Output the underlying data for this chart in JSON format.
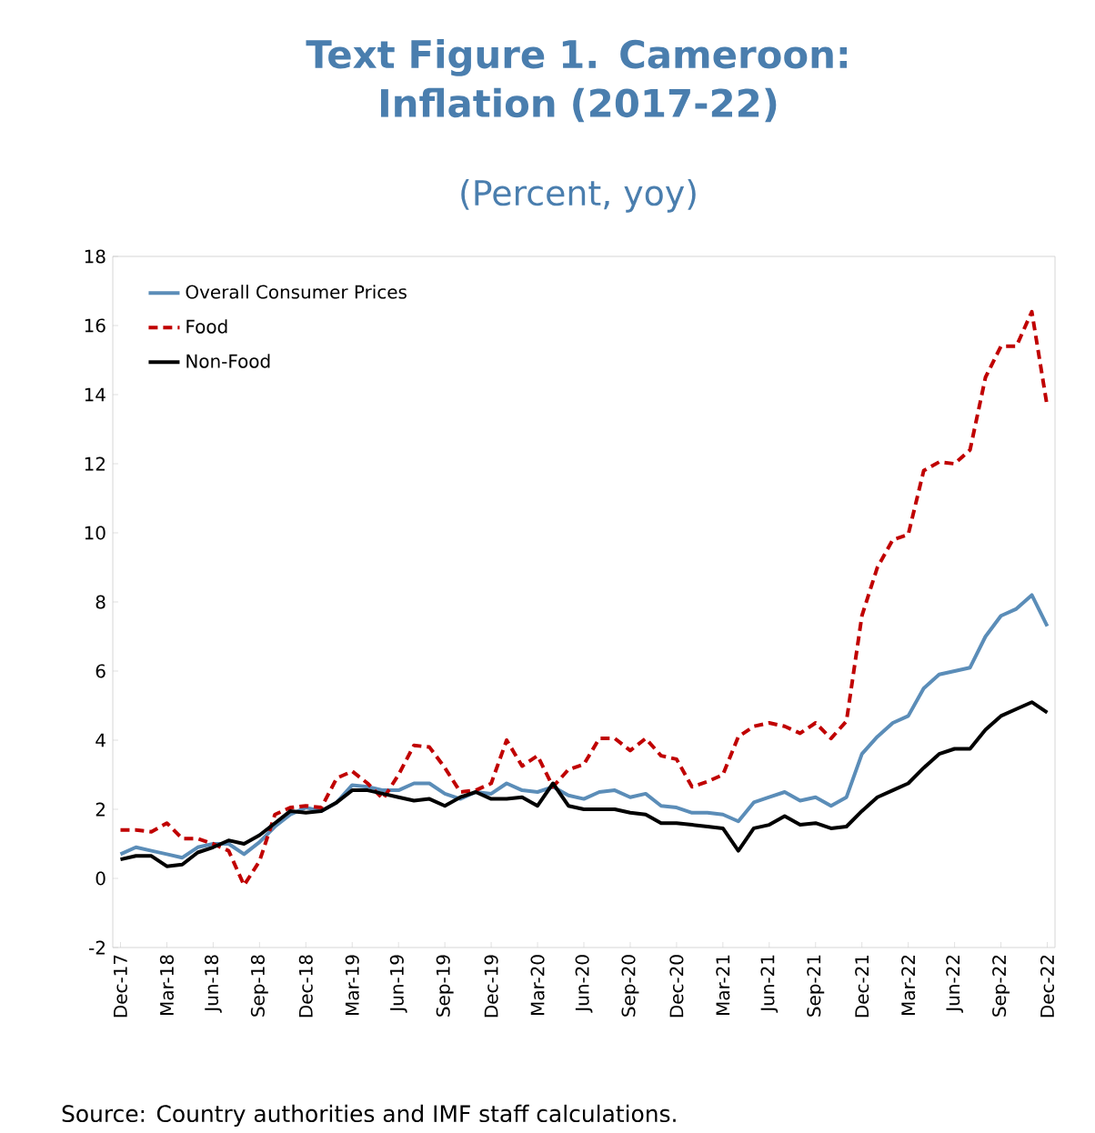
{
  "chart_data": {
    "type": "line",
    "title": "Text Figure 1. Cameroon: Inflation (2017-22)",
    "subtitle": "(Percent, yoy)",
    "annotations": [
      "Source: Country authorities and IMF staff calculations."
    ],
    "categories": [
      "Dec-17",
      null,
      null,
      "Mar-18",
      null,
      null,
      "Jun-18",
      null,
      null,
      "Sep-18",
      null,
      null,
      "Dec-18",
      null,
      null,
      "Mar-19",
      null,
      null,
      "Jun-19",
      null,
      null,
      "Sep-19",
      null,
      null,
      "Dec-19",
      null,
      null,
      "Mar-20",
      null,
      null,
      "Jun-20",
      null,
      null,
      "Sep-20",
      null,
      null,
      "Dec-20",
      null,
      null,
      "Mar-21",
      null,
      null,
      "Jun-21",
      null,
      null,
      "Sep-21",
      null,
      null,
      "Dec-21",
      null,
      null,
      "Mar-22",
      null,
      null,
      "Jun-22",
      null,
      null,
      "Sep-22",
      null,
      null,
      "Dec-22"
    ],
    "series": [
      {
        "name": "Overall Consumer Prices",
        "color": "#5b8db8",
        "line_style": "solid",
        "values": [
          0.7,
          0.9,
          0.8,
          0.7,
          0.6,
          0.9,
          1.0,
          1.0,
          0.7,
          1.05,
          1.5,
          1.85,
          2.05,
          1.95,
          2.2,
          2.7,
          2.65,
          2.55,
          2.55,
          2.75,
          2.75,
          2.45,
          2.3,
          2.5,
          2.45,
          2.75,
          2.55,
          2.5,
          2.65,
          2.4,
          2.3,
          2.5,
          2.55,
          2.35,
          2.45,
          2.1,
          2.05,
          1.9,
          1.9,
          1.85,
          1.65,
          2.2,
          2.35,
          2.5,
          2.25,
          2.35,
          2.1,
          2.35,
          3.6,
          4.1,
          4.5,
          4.7,
          5.5,
          5.9,
          6.0,
          6.1,
          7.0,
          7.6,
          7.8,
          8.2,
          7.3
        ]
      },
      {
        "name": "Food",
        "color": "#c00000",
        "line_style": "dashed",
        "values": [
          1.4,
          1.4,
          1.35,
          1.6,
          1.15,
          1.15,
          1.0,
          0.8,
          -0.2,
          0.5,
          1.85,
          2.05,
          2.1,
          2.05,
          2.9,
          3.1,
          2.75,
          2.3,
          3.0,
          3.85,
          3.8,
          3.2,
          2.5,
          2.55,
          2.75,
          4.0,
          3.25,
          3.55,
          2.65,
          3.15,
          3.3,
          4.05,
          4.05,
          3.7,
          4.05,
          3.55,
          3.45,
          2.65,
          2.8,
          3.0,
          4.1,
          4.4,
          4.5,
          4.4,
          4.2,
          4.5,
          4.05,
          4.55,
          7.6,
          9.0,
          9.8,
          9.95,
          11.8,
          12.05,
          12.0,
          12.4,
          14.5,
          15.4,
          15.4,
          16.4,
          13.65
        ]
      },
      {
        "name": "Non-Food",
        "color": "#000000",
        "line_style": "solid",
        "values": [
          0.55,
          0.65,
          0.65,
          0.35,
          0.4,
          0.75,
          0.9,
          1.1,
          1.0,
          1.25,
          1.6,
          1.95,
          1.9,
          1.95,
          2.2,
          2.55,
          2.55,
          2.45,
          2.35,
          2.25,
          2.3,
          2.1,
          2.35,
          2.5,
          2.3,
          2.3,
          2.35,
          2.1,
          2.75,
          2.1,
          2.0,
          2.0,
          2.0,
          1.9,
          1.85,
          1.6,
          1.6,
          1.55,
          1.5,
          1.45,
          0.8,
          1.45,
          1.55,
          1.8,
          1.55,
          1.6,
          1.45,
          1.5,
          1.95,
          2.35,
          2.55,
          2.75,
          3.2,
          3.6,
          3.75,
          3.75,
          4.3,
          4.7,
          4.9,
          5.1,
          4.8
        ]
      }
    ],
    "ylim": [
      -2,
      18
    ],
    "yticks": [
      -2,
      0,
      2,
      4,
      6,
      8,
      10,
      12,
      14,
      16,
      18
    ],
    "legend": "top left",
    "grid": false
  }
}
